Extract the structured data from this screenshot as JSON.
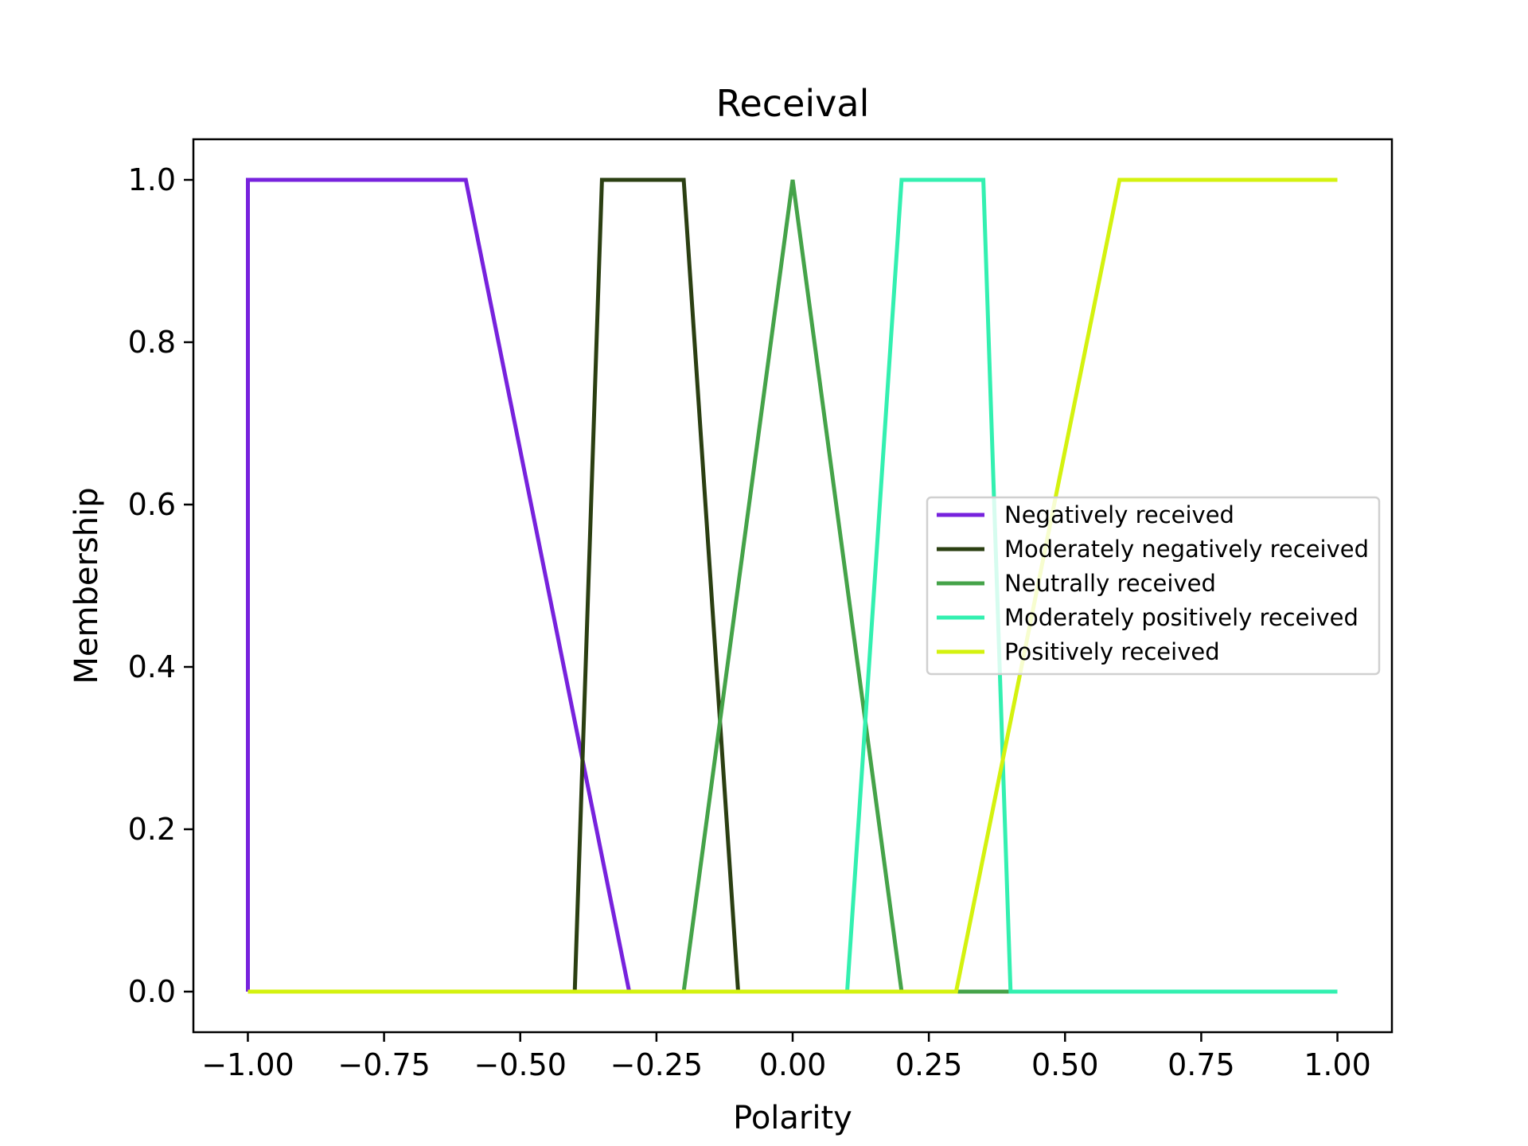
{
  "chart_data": {
    "type": "line",
    "title": "Receival",
    "xlabel": "Polarity",
    "ylabel": "Membership",
    "xlim": [
      -1.1,
      1.1
    ],
    "ylim": [
      -0.05,
      1.05
    ],
    "xticks": [
      -1.0,
      -0.75,
      -0.5,
      -0.25,
      0.0,
      0.25,
      0.5,
      0.75,
      1.0
    ],
    "xtick_labels": [
      "−1.00",
      "−0.75",
      "−0.50",
      "−0.25",
      "0.00",
      "0.25",
      "0.50",
      "0.75",
      "1.00"
    ],
    "yticks": [
      0.0,
      0.2,
      0.4,
      0.6,
      0.8,
      1.0
    ],
    "ytick_labels": [
      "0.0",
      "0.2",
      "0.4",
      "0.6",
      "0.8",
      "1.0"
    ],
    "grid": false,
    "legend_position": "center-right",
    "series": [
      {
        "name": "Negatively received",
        "color": "#7722dd",
        "points": [
          [
            -1.0,
            0.0
          ],
          [
            -1.0,
            1.0
          ],
          [
            -0.6,
            1.0
          ],
          [
            -0.3,
            0.0
          ],
          [
            1.0,
            0.0
          ]
        ]
      },
      {
        "name": "Moderately negatively received",
        "color": "#2b3f12",
        "points": [
          [
            -1.0,
            0.0
          ],
          [
            -0.4,
            0.0
          ],
          [
            -0.35,
            1.0
          ],
          [
            -0.2,
            1.0
          ],
          [
            -0.1,
            0.0
          ],
          [
            1.0,
            0.0
          ]
        ]
      },
      {
        "name": "Neutrally received",
        "color": "#45a349",
        "points": [
          [
            -1.0,
            0.0
          ],
          [
            -0.2,
            0.0
          ],
          [
            0.0,
            1.0
          ],
          [
            0.2,
            0.0
          ],
          [
            1.0,
            0.0
          ]
        ]
      },
      {
        "name": "Moderately positively received",
        "color": "#33f0b0",
        "points": [
          [
            -1.0,
            0.0
          ],
          [
            0.1,
            0.0
          ],
          [
            0.2,
            1.0
          ],
          [
            0.35,
            1.0
          ],
          [
            0.4,
            0.0
          ],
          [
            1.0,
            0.0
          ]
        ]
      },
      {
        "name": "Positively received",
        "color": "#d4f20f",
        "points": [
          [
            -1.0,
            0.0
          ],
          [
            0.3,
            0.0
          ],
          [
            0.6,
            1.0
          ],
          [
            1.0,
            1.0
          ]
        ]
      }
    ]
  }
}
